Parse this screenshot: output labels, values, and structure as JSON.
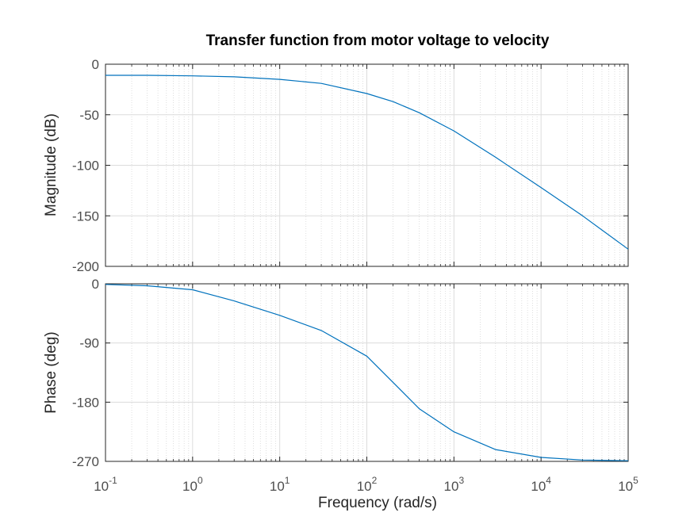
{
  "chart_data": [
    {
      "type": "line",
      "panel": "magnitude",
      "title": "Transfer function from motor voltage to velocity",
      "ylabel": "Magnitude (dB)",
      "xlabel": "",
      "x_scale": "log",
      "xlim": [
        0.1,
        100000
      ],
      "ylim": [
        -200,
        0
      ],
      "yticks": [
        0,
        -50,
        -100,
        -150,
        -200
      ],
      "grid": true,
      "series": [
        {
          "color": "#0072bd",
          "x": [
            0.1,
            0.3,
            1,
            3,
            10,
            30,
            100,
            200,
            400,
            1000,
            3000,
            10000,
            30000,
            100000
          ],
          "y": [
            -11,
            -11,
            -11.5,
            -12.5,
            -15,
            -19,
            -29,
            -37,
            -48,
            -66,
            -92,
            -122,
            -150,
            -183
          ]
        }
      ]
    },
    {
      "type": "line",
      "panel": "phase",
      "title": "",
      "ylabel": "Phase (deg)",
      "xlabel": "Frequency  (rad/s)",
      "x_scale": "log",
      "xlim": [
        0.1,
        100000
      ],
      "ylim": [
        -270,
        0
      ],
      "yticks": [
        0,
        -90,
        -180,
        -270
      ],
      "xticks": [
        "10^-1",
        "10^0",
        "10^1",
        "10^2",
        "10^3",
        "10^4",
        "10^5"
      ],
      "grid": true,
      "series": [
        {
          "color": "#0072bd",
          "x": [
            0.1,
            0.3,
            1,
            3,
            10,
            30,
            100,
            200,
            400,
            1000,
            3000,
            10000,
            30000,
            100000
          ],
          "y": [
            -1,
            -3,
            -9,
            -26,
            -48,
            -71,
            -110,
            -150,
            -190,
            -225,
            -252,
            -264,
            -268,
            -269
          ]
        }
      ]
    }
  ]
}
